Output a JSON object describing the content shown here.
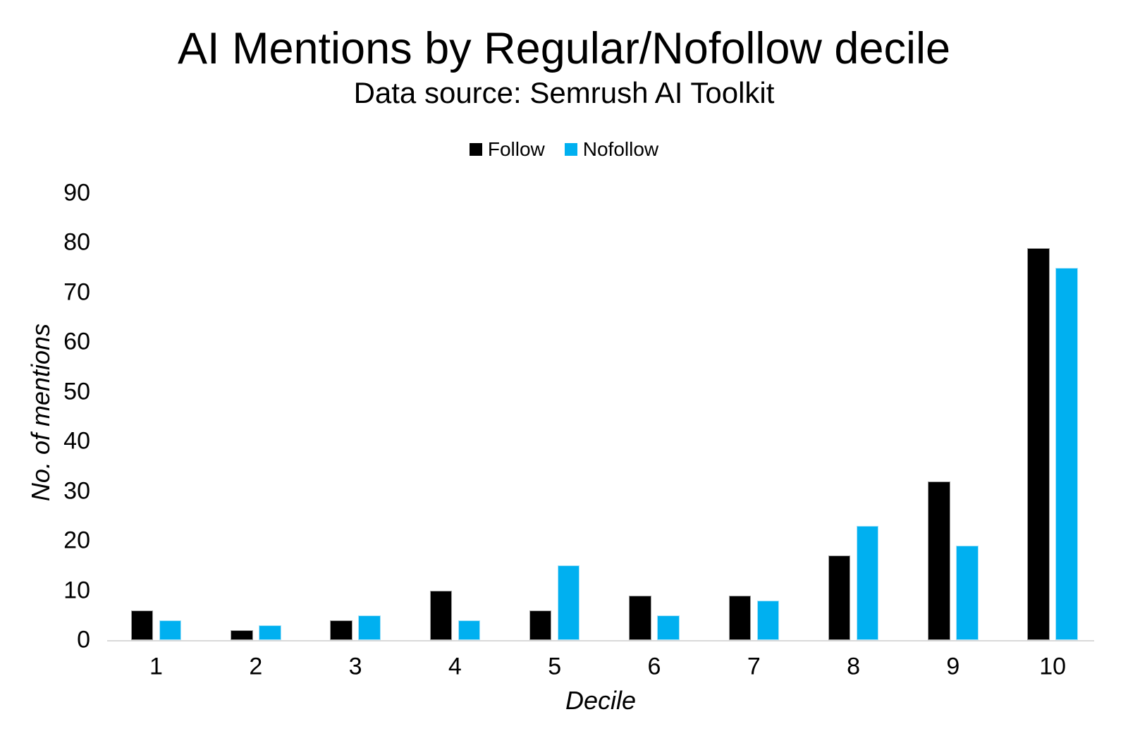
{
  "chart_data": {
    "type": "bar",
    "title": "AI Mentions by Regular/Nofollow decile",
    "subtitle": "Data source: Semrush AI Toolkit",
    "xlabel": "Decile",
    "ylabel": "No. of mentions",
    "categories": [
      "1",
      "2",
      "3",
      "4",
      "5",
      "6",
      "7",
      "8",
      "9",
      "10"
    ],
    "series": [
      {
        "name": "Follow",
        "color": "#000000",
        "values": [
          6,
          2,
          4,
          10,
          6,
          9,
          9,
          17,
          32,
          79
        ]
      },
      {
        "name": "Nofollow",
        "color": "#00B0F0",
        "values": [
          4,
          3,
          5,
          4,
          15,
          5,
          8,
          23,
          19,
          75
        ]
      }
    ],
    "ylim": [
      0,
      90
    ],
    "y_ticks": [
      0,
      10,
      20,
      30,
      40,
      50,
      60,
      70,
      80,
      90
    ],
    "grid": false,
    "legend_position": "top",
    "axis_line_color": "#D9D9D9",
    "text_color": "#000000"
  }
}
